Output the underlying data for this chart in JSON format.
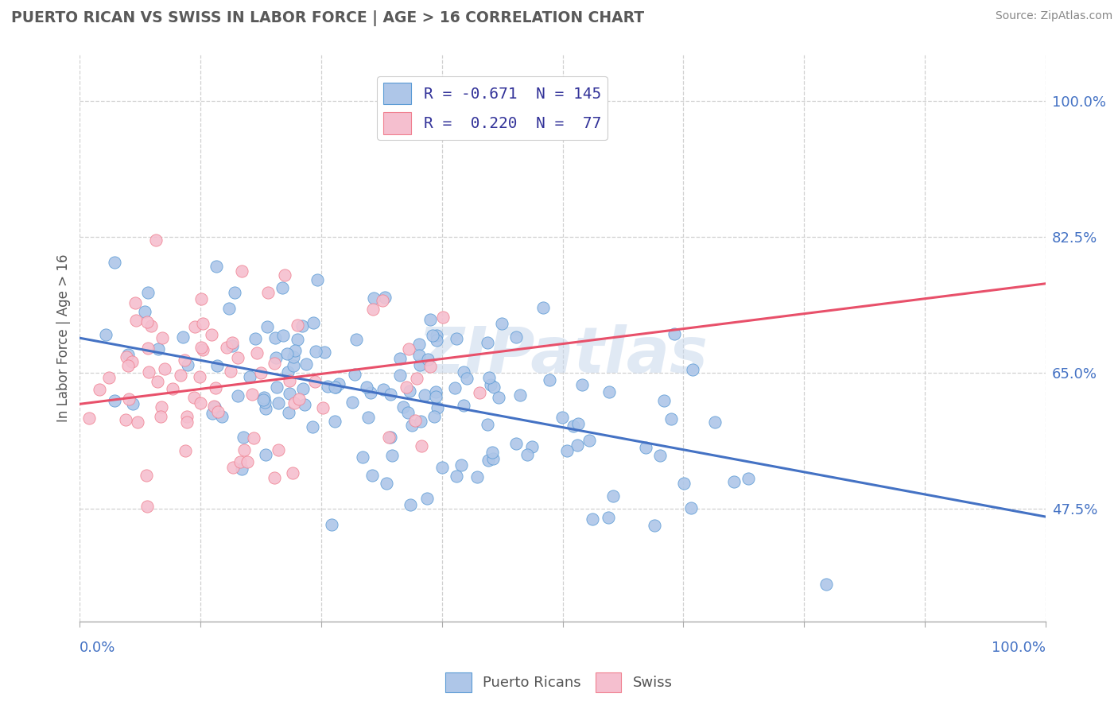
{
  "title": "PUERTO RICAN VS SWISS IN LABOR FORCE | AGE > 16 CORRELATION CHART",
  "source_text": "Source: ZipAtlas.com",
  "ylabel": "In Labor Force | Age > 16",
  "ytick_labels": [
    "47.5%",
    "65.0%",
    "82.5%",
    "100.0%"
  ],
  "ytick_values": [
    0.475,
    0.65,
    0.825,
    1.0
  ],
  "xlim": [
    0.0,
    1.0
  ],
  "ylim": [
    0.33,
    1.06
  ],
  "blue_color": "#aec6e8",
  "pink_color": "#f5bfcf",
  "blue_edge_color": "#5b9bd5",
  "pink_edge_color": "#f08090",
  "blue_line_color": "#4472c4",
  "pink_line_color": "#e8506a",
  "watermark": "ZIPatlas",
  "title_color": "#595959",
  "axis_label_color": "#4472c4",
  "grid_color": "#d0d0d0",
  "R_blue": -0.671,
  "N_blue": 145,
  "R_pink": 0.22,
  "N_pink": 77,
  "blue_intercept": 0.695,
  "blue_slope": -0.23,
  "pink_intercept": 0.61,
  "pink_slope": 0.155,
  "legend_label_color": "#333399",
  "legend_value_color": "#333399"
}
